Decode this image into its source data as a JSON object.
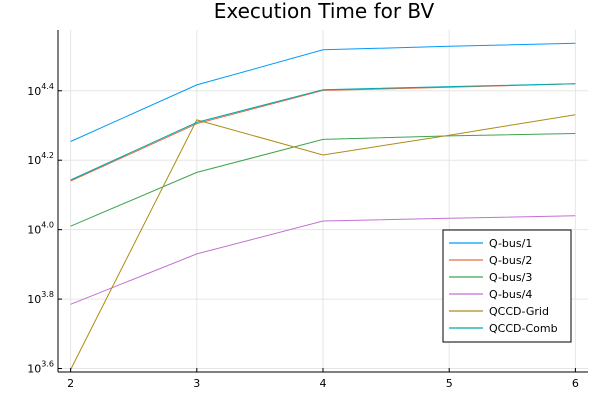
{
  "chart_data": {
    "type": "line",
    "title": "Execution Time for BV",
    "xlabel": "",
    "ylabel": "",
    "x": [
      2,
      3,
      4,
      5,
      6
    ],
    "xlim": [
      1.9,
      6.1
    ],
    "ylim": [
      3.59,
      4.575
    ],
    "yscale": "log10",
    "xticks": [
      2,
      3,
      4,
      5,
      6
    ],
    "yticks": [
      {
        "exp": 3.6,
        "base": "10",
        "power": "3.6"
      },
      {
        "exp": 3.8,
        "base": "10",
        "power": "3.8"
      },
      {
        "exp": 4.0,
        "base": "10",
        "power": "4.0"
      },
      {
        "exp": 4.2,
        "base": "10",
        "power": "4.2"
      },
      {
        "exp": 4.4,
        "base": "10",
        "power": "4.4"
      }
    ],
    "grid": true,
    "legend_position": "bottom-right",
    "series": [
      {
        "name": "Q-bus/1",
        "color": "#009AFA",
        "log10_values": [
          4.254,
          4.417,
          4.518,
          4.528,
          4.537
        ]
      },
      {
        "name": "Q-bus/2",
        "color": "#E36F47",
        "log10_values": [
          4.14,
          4.305,
          4.401,
          4.41,
          4.42
        ]
      },
      {
        "name": "Q-bus/3",
        "color": "#3EA44E",
        "log10_values": [
          4.01,
          4.165,
          4.26,
          4.27,
          4.277
        ]
      },
      {
        "name": "Q-bus/4",
        "color": "#C371D2",
        "log10_values": [
          3.785,
          3.93,
          4.025,
          4.033,
          4.04
        ]
      },
      {
        "name": "QCCD-Grid",
        "color": "#AC8D18",
        "log10_values": [
          3.597,
          4.316,
          4.215,
          4.272,
          4.331
        ]
      },
      {
        "name": "QCCD-Comb",
        "color": "#00A9AD",
        "log10_values": [
          4.143,
          4.309,
          4.403,
          4.412,
          4.42
        ]
      }
    ]
  }
}
